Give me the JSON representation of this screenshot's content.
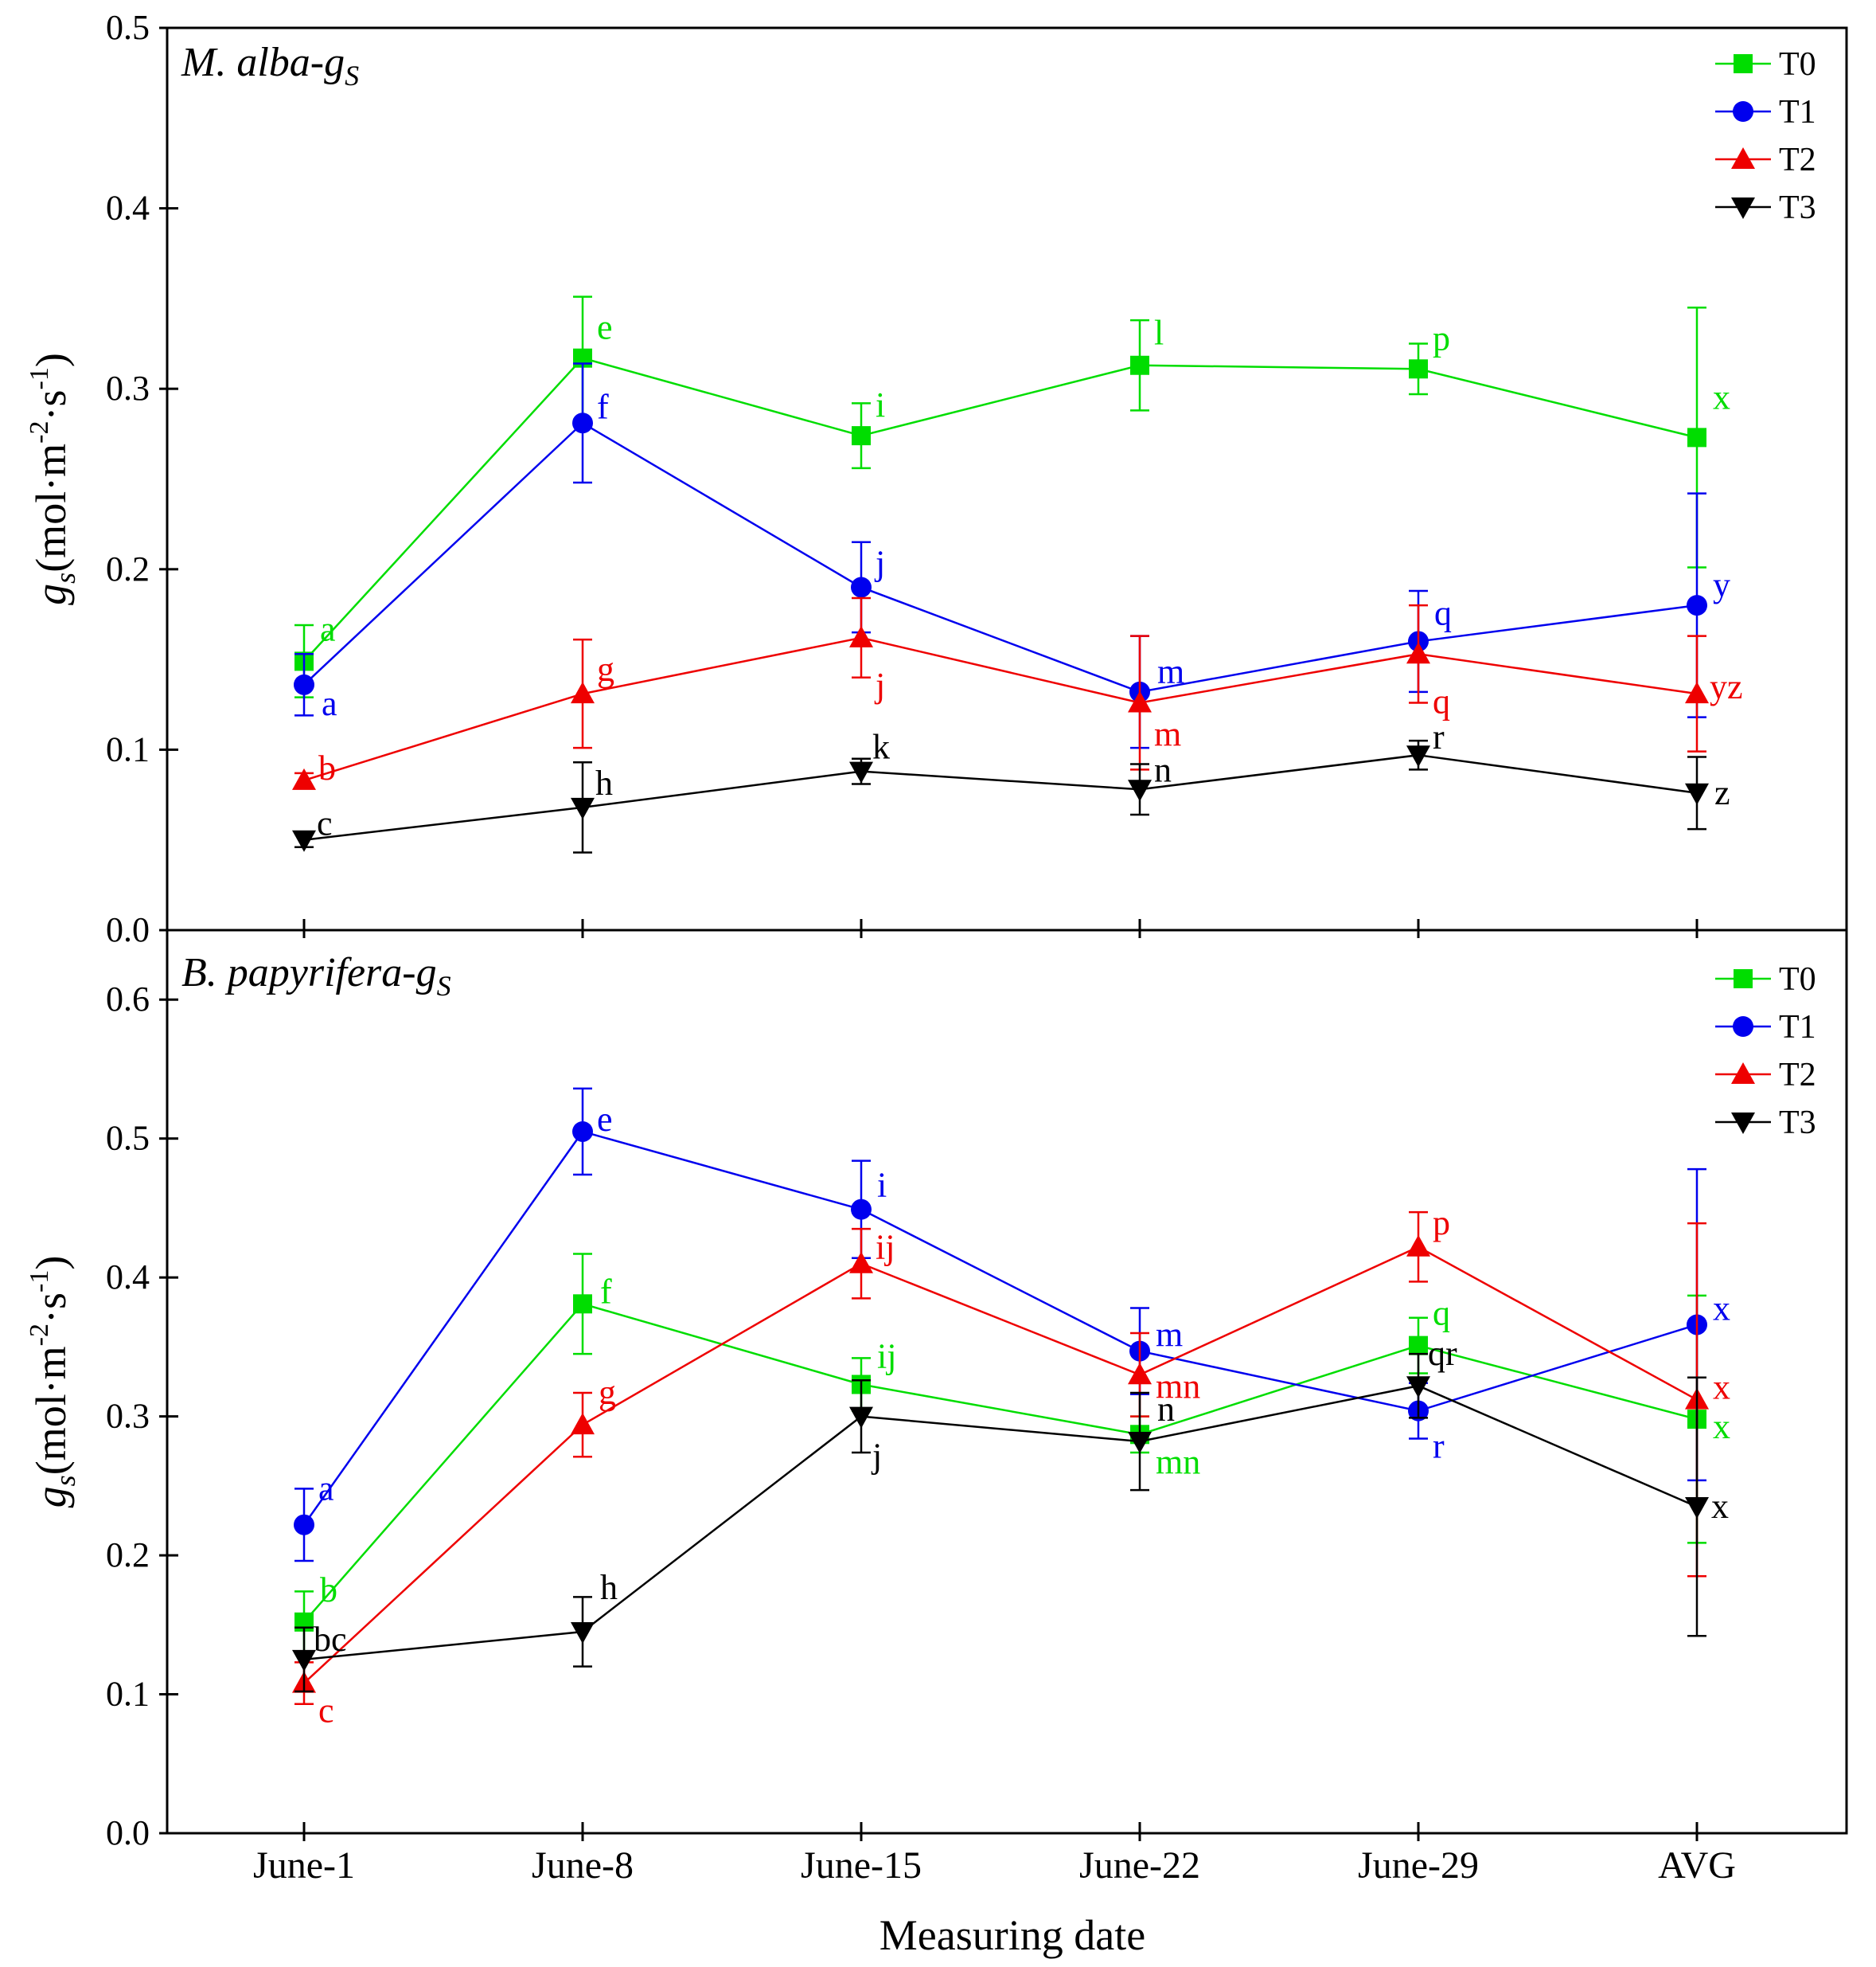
{
  "colors": {
    "T0": "#00dd00",
    "T1": "#0000ee",
    "T2": "#ee0000",
    "T3": "#000000"
  },
  "chart_data": {
    "type": "line",
    "xlabel": "Measuring date",
    "categories": [
      "June-1",
      "June-8",
      "June-15",
      "June-22",
      "June-29",
      "AVG"
    ],
    "legend_position": "top-right",
    "panels": [
      {
        "title": "M. alba-g",
        "title_sub": "S",
        "ylabel": "g",
        "ylabel_sub": "s",
        "ylabel_unit": "(mol·m",
        "ylabel_exp1": "-2",
        "ylabel_mid": "·s",
        "ylabel_exp2": "-1",
        "ylabel_end": ")",
        "ylim": [
          0,
          0.5
        ],
        "yticks": [
          0.0,
          0.1,
          0.2,
          0.3,
          0.4,
          0.5
        ],
        "ytick_labels": [
          "0.0",
          "0.1",
          "0.2",
          "0.3",
          "0.4",
          "0.5"
        ],
        "series": [
          {
            "name": "T0",
            "values": [
              0.149,
              0.317,
              0.274,
              0.313,
              0.311,
              0.273
            ],
            "errors": [
              0.02,
              0.034,
              0.018,
              0.025,
              0.014,
              0.072
            ],
            "labels": [
              "a",
              "e",
              "i",
              "l",
              "p",
              "x"
            ]
          },
          {
            "name": "T1",
            "values": [
              0.136,
              0.281,
              0.19,
              0.132,
              0.16,
              0.18
            ],
            "errors": [
              0.017,
              0.033,
              0.025,
              0.031,
              0.028,
              0.062
            ],
            "labels": [
              "a",
              "f",
              "j",
              "m",
              "q",
              "y"
            ]
          },
          {
            "name": "T2",
            "values": [
              0.083,
              0.131,
              0.162,
              0.126,
              0.153,
              0.131
            ],
            "errors": [
              0.004,
              0.03,
              0.022,
              0.037,
              0.027,
              0.032
            ],
            "labels": [
              "b",
              "g",
              "j",
              "m",
              "q",
              "yz"
            ]
          },
          {
            "name": "T3",
            "values": [
              0.05,
              0.068,
              0.088,
              0.078,
              0.097,
              0.076
            ],
            "errors": [
              0.004,
              0.025,
              0.007,
              0.014,
              0.008,
              0.02
            ],
            "labels": [
              "c",
              "h",
              "k",
              "n",
              "r",
              "z"
            ]
          }
        ]
      },
      {
        "title": "B. papyrifera-g",
        "title_sub": "S",
        "ylabel": "g",
        "ylabel_sub": "s",
        "ylabel_unit": "(mol·m",
        "ylabel_exp1": "-2",
        "ylabel_mid": "·s",
        "ylabel_exp2": "-1",
        "ylabel_end": ")",
        "ylim": [
          0,
          0.65
        ],
        "yticks": [
          0.0,
          0.1,
          0.2,
          0.3,
          0.4,
          0.5,
          0.6
        ],
        "ytick_labels": [
          "0.0",
          "0.1",
          "0.2",
          "0.3",
          "0.4",
          "0.5",
          "0.6"
        ],
        "series": [
          {
            "name": "T0",
            "values": [
              0.152,
              0.381,
              0.323,
              0.287,
              0.351,
              0.298
            ],
            "errors": [
              0.022,
              0.036,
              0.019,
              0.013,
              0.02,
              0.089
            ],
            "labels": [
              "b",
              "f",
              "ij",
              "mn",
              "q",
              "x"
            ]
          },
          {
            "name": "T1",
            "values": [
              0.222,
              0.505,
              0.449,
              0.347,
              0.304,
              0.366
            ],
            "errors": [
              0.026,
              0.031,
              0.035,
              0.031,
              0.02,
              0.112
            ],
            "labels": [
              "a",
              "e",
              "i",
              "m",
              "r",
              "x"
            ]
          },
          {
            "name": "T2",
            "values": [
              0.108,
              0.294,
              0.41,
              0.33,
              0.422,
              0.312
            ],
            "errors": [
              0.015,
              0.023,
              0.025,
              0.03,
              0.025,
              0.127
            ],
            "labels": [
              "c",
              "g",
              "ij",
              "mn",
              "p",
              "x"
            ]
          },
          {
            "name": "T3",
            "values": [
              0.125,
              0.145,
              0.3,
              0.282,
              0.322,
              0.235
            ],
            "errors": [
              0.023,
              0.025,
              0.026,
              0.035,
              0.023,
              0.093
            ],
            "labels": [
              "bc",
              "h",
              "j",
              "n",
              "qr",
              "x"
            ]
          }
        ]
      }
    ]
  }
}
